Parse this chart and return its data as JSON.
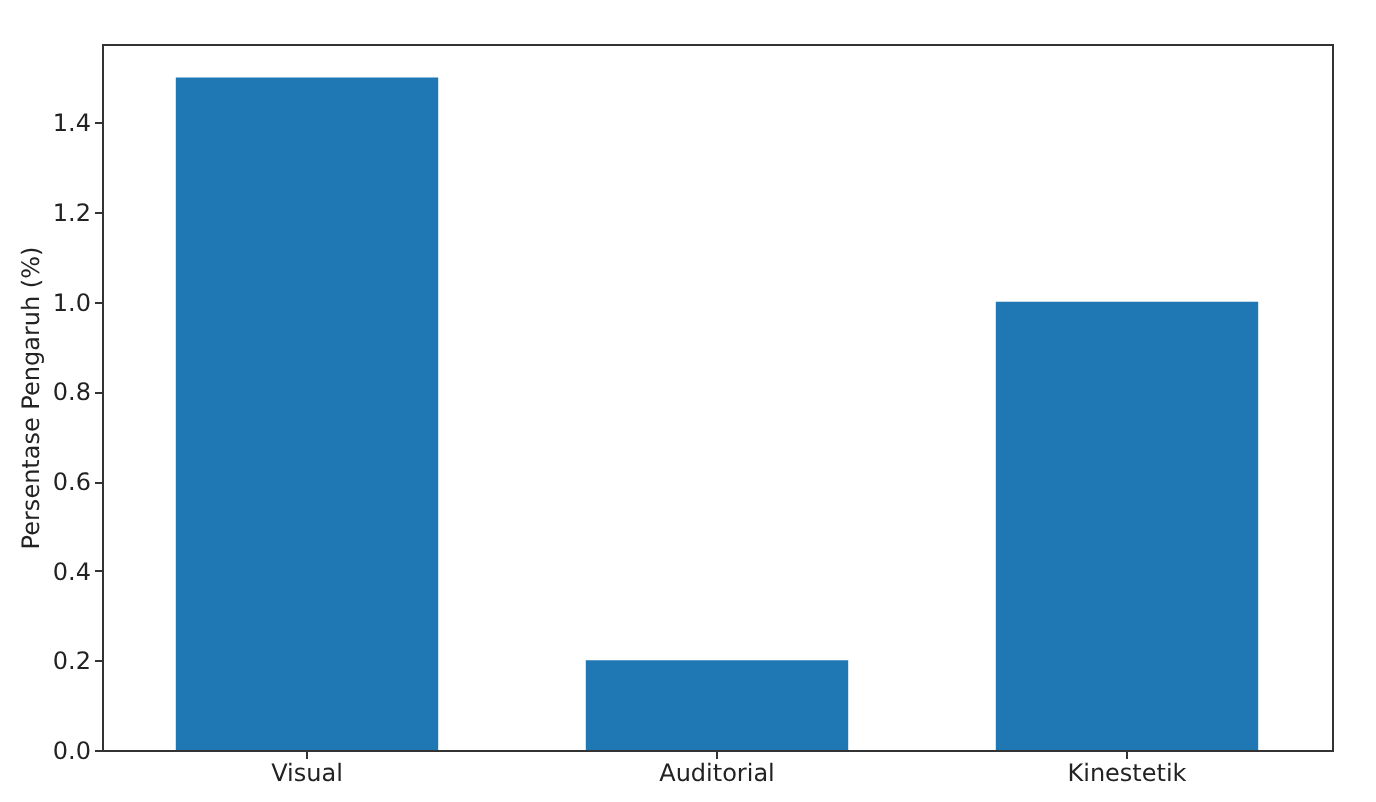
{
  "chart_data": {
    "type": "bar",
    "ylabel": "Persentase Pengaruh (%)",
    "categories": [
      "Visual",
      "Auditorial",
      "Kinestetik"
    ],
    "values": [
      1.5,
      0.2,
      1.0
    ],
    "color": "#1f77b4",
    "ylim": [
      0,
      1.575
    ],
    "yticks": [
      {
        "value": 0,
        "label": "0.0"
      },
      0.2,
      0.4,
      0.6,
      0.8,
      {
        "value": 1,
        "label": "1.0"
      },
      1.2,
      1.4
    ],
    "grid": false
  }
}
